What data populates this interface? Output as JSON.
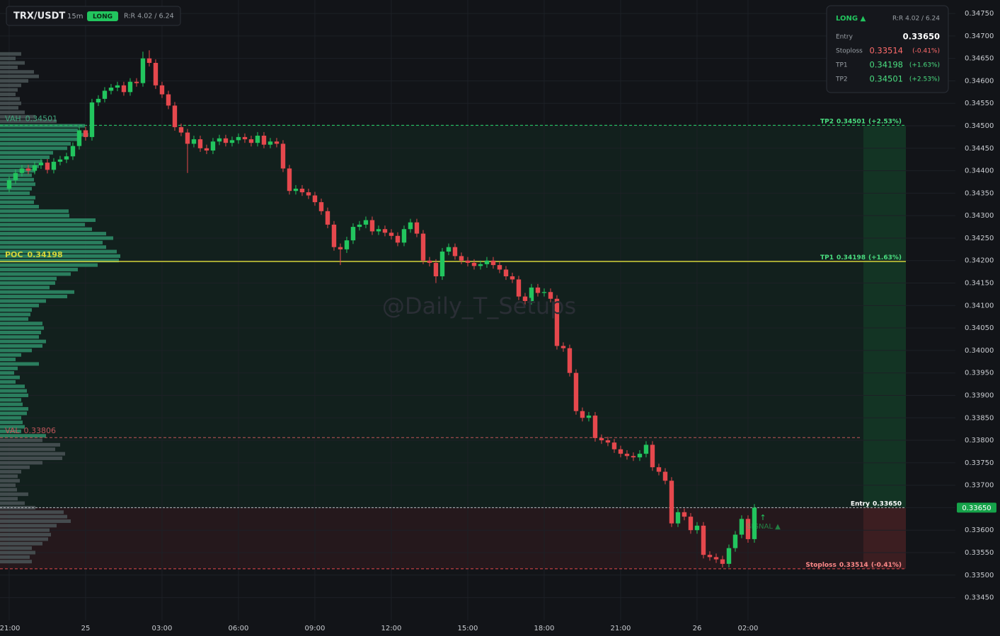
{
  "chart_data": {
    "type": "candlestick",
    "title": "TRX/USDT",
    "interval": "15m",
    "side": "LONG",
    "rr": "R:R 4.02 / 6.24",
    "panel_side": "LONG ▲",
    "watermark": "@Daily_T_Setups",
    "signal": "SIGNAL ▲",
    "colors": {
      "up": "#22c55e",
      "down": "#e5484d",
      "value_area": "#2f8f6a",
      "outside": "#4b5557",
      "poc": "#d4d43a"
    },
    "grid": true,
    "xlim": [
      -1.44,
      148.56
    ],
    "ylim": [
      0.33399,
      0.3478
    ],
    "xticks": [
      {
        "value": 0,
        "label": "21:00"
      },
      {
        "value": 12,
        "label": "25"
      },
      {
        "value": 24,
        "label": "03:00"
      },
      {
        "value": 36,
        "label": "06:00"
      },
      {
        "value": 48,
        "label": "09:00"
      },
      {
        "value": 60,
        "label": "12:00"
      },
      {
        "value": 72,
        "label": "15:00"
      },
      {
        "value": 84,
        "label": "18:00"
      },
      {
        "value": 96,
        "label": "21:00"
      },
      {
        "value": 108,
        "label": "26"
      },
      {
        "value": 116,
        "label": "02:00"
      }
    ],
    "yticks": [
      {
        "value": 0.3475,
        "label": "0.34750"
      },
      {
        "value": 0.347,
        "label": "0.34700"
      },
      {
        "value": 0.3465,
        "label": "0.34650"
      },
      {
        "value": 0.346,
        "label": "0.34600"
      },
      {
        "value": 0.3455,
        "label": "0.34550"
      },
      {
        "value": 0.345,
        "label": "0.34500"
      },
      {
        "value": 0.3445,
        "label": "0.34450"
      },
      {
        "value": 0.344,
        "label": "0.34400"
      },
      {
        "value": 0.3435,
        "label": "0.34350"
      },
      {
        "value": 0.343,
        "label": "0.34300"
      },
      {
        "value": 0.3425,
        "label": "0.34250"
      },
      {
        "value": 0.342,
        "label": "0.34200"
      },
      {
        "value": 0.3415,
        "label": "0.34150"
      },
      {
        "value": 0.341,
        "label": "0.34100"
      },
      {
        "value": 0.3405,
        "label": "0.34050"
      },
      {
        "value": 0.34,
        "label": "0.34000"
      },
      {
        "value": 0.3395,
        "label": "0.33950"
      },
      {
        "value": 0.339,
        "label": "0.33900"
      },
      {
        "value": 0.3385,
        "label": "0.33850"
      },
      {
        "value": 0.338,
        "label": "0.33800"
      },
      {
        "value": 0.3375,
        "label": "0.33750"
      },
      {
        "value": 0.337,
        "label": "0.33700"
      },
      {
        "value": 0.3365,
        "label": "0.33650"
      },
      {
        "value": 0.336,
        "label": "0.33600"
      },
      {
        "value": 0.3355,
        "label": "0.33550"
      },
      {
        "value": 0.335,
        "label": "0.33500"
      },
      {
        "value": 0.3345,
        "label": "0.33450"
      }
    ],
    "last_price": {
      "value": 0.3365,
      "label": "0.33650"
    },
    "open": [
      0.3436,
      0.34379,
      0.34395,
      0.34405,
      0.344,
      0.34412,
      0.34418,
      0.34402,
      0.3442,
      0.34425,
      0.34432,
      0.34455,
      0.3449,
      0.34475,
      0.34552,
      0.3456,
      0.34578,
      0.34585,
      0.3459,
      0.34575,
      0.34598,
      0.34595,
      0.3465,
      0.3464,
      0.3459,
      0.3457,
      0.34545,
      0.34497,
      0.34485,
      0.3446,
      0.3447,
      0.3445,
      0.34445,
      0.34465,
      0.34472,
      0.34462,
      0.34468,
      0.34475,
      0.3447,
      0.34462,
      0.34478,
      0.34458,
      0.34465,
      0.3446,
      0.34405,
      0.34355,
      0.3436,
      0.34352,
      0.34345,
      0.3433,
      0.3431,
      0.3428,
      0.3423,
      0.34225,
      0.34245,
      0.34275,
      0.3428,
      0.3429,
      0.34265,
      0.3427,
      0.34262,
      0.34255,
      0.3424,
      0.3427,
      0.34285,
      0.3426,
      0.342,
      0.34195,
      0.34165,
      0.3422,
      0.3423,
      0.3421,
      0.342,
      0.34195,
      0.34188,
      0.34192,
      0.342,
      0.3419,
      0.3418,
      0.34165,
      0.34158,
      0.3412,
      0.3411,
      0.3414,
      0.34128,
      0.3413,
      0.34115,
      0.3401,
      0.34005,
      0.3395,
      0.33865,
      0.3385,
      0.33855,
      0.33805,
      0.338,
      0.33795,
      0.3378,
      0.3377,
      0.33765,
      0.33762,
      0.3377,
      0.3379,
      0.3374,
      0.3373,
      0.3371,
      0.33615,
      0.3364,
      0.3363,
      0.336,
      0.3361,
      0.33545,
      0.3354,
      0.33535,
      0.33525,
      0.3356,
      0.3359,
      0.33625,
      0.3358
    ],
    "high": [
      0.34387,
      0.34403,
      0.34413,
      0.34413,
      0.3442,
      0.34426,
      0.34426,
      0.34428,
      0.34433,
      0.3444,
      0.34463,
      0.34498,
      0.34498,
      0.3456,
      0.34568,
      0.34586,
      0.34593,
      0.34598,
      0.34598,
      0.34606,
      0.34606,
      0.34665,
      0.34668,
      0.34648,
      0.34598,
      0.34578,
      0.34553,
      0.34505,
      0.34493,
      0.34478,
      0.34478,
      0.34458,
      0.34473,
      0.3448,
      0.3448,
      0.34476,
      0.34483,
      0.34483,
      0.34478,
      0.34486,
      0.34486,
      0.34473,
      0.34473,
      0.34468,
      0.34413,
      0.34368,
      0.34368,
      0.3436,
      0.34353,
      0.34338,
      0.34318,
      0.34288,
      0.34238,
      0.34253,
      0.34283,
      0.34288,
      0.34298,
      0.34298,
      0.34278,
      0.34278,
      0.3427,
      0.34263,
      0.34278,
      0.34293,
      0.34293,
      0.34268,
      0.34208,
      0.34203,
      0.34228,
      0.34238,
      0.34238,
      0.34218,
      0.34208,
      0.34203,
      0.342,
      0.34208,
      0.34208,
      0.34198,
      0.34188,
      0.34173,
      0.34166,
      0.34128,
      0.34148,
      0.34148,
      0.34138,
      0.34138,
      0.34123,
      0.34018,
      0.34013,
      0.33958,
      0.33873,
      0.33863,
      0.33863,
      0.33813,
      0.33808,
      0.33803,
      0.33788,
      0.33778,
      0.33773,
      0.33778,
      0.33798,
      0.33798,
      0.33748,
      0.33738,
      0.33718,
      0.33648,
      0.33648,
      0.33638,
      0.33618,
      0.33618,
      0.33553,
      0.33548,
      0.33543,
      0.33568,
      0.33598,
      0.33633,
      0.33633,
      0.33658
    ],
    "low": [
      0.34352,
      0.34371,
      0.34387,
      0.34392,
      0.34392,
      0.34404,
      0.34394,
      0.34394,
      0.34412,
      0.34417,
      0.34424,
      0.34447,
      0.34467,
      0.34467,
      0.34544,
      0.34552,
      0.3457,
      0.34577,
      0.34567,
      0.34567,
      0.34587,
      0.34587,
      0.34632,
      0.34582,
      0.34562,
      0.34537,
      0.34489,
      0.34477,
      0.34395,
      0.34452,
      0.34442,
      0.34437,
      0.34437,
      0.34457,
      0.34454,
      0.34454,
      0.3446,
      0.34462,
      0.34454,
      0.34454,
      0.3445,
      0.3445,
      0.34452,
      0.34397,
      0.34347,
      0.34347,
      0.34344,
      0.34337,
      0.34322,
      0.34302,
      0.34272,
      0.34222,
      0.3419,
      0.34217,
      0.34237,
      0.34267,
      0.34272,
      0.34257,
      0.34257,
      0.34254,
      0.34247,
      0.34232,
      0.34232,
      0.34262,
      0.34252,
      0.34192,
      0.34187,
      0.3415,
      0.34157,
      0.34212,
      0.34202,
      0.34192,
      0.34187,
      0.3418,
      0.3418,
      0.34184,
      0.34182,
      0.34172,
      0.34157,
      0.3415,
      0.34112,
      0.34102,
      0.34102,
      0.3412,
      0.3412,
      0.34107,
      0.34002,
      0.33997,
      0.33942,
      0.33857,
      0.33842,
      0.33842,
      0.33797,
      0.33792,
      0.33787,
      0.33772,
      0.33762,
      0.33757,
      0.33754,
      0.33754,
      0.33762,
      0.33732,
      0.33722,
      0.33702,
      0.33607,
      0.33607,
      0.33622,
      0.33592,
      0.33592,
      0.33537,
      0.33532,
      0.33527,
      0.33517,
      0.33517,
      0.33552,
      0.33582,
      0.33572,
      0.33572
    ],
    "close": [
      0.34379,
      0.34395,
      0.34405,
      0.344,
      0.34412,
      0.34418,
      0.34402,
      0.3442,
      0.34425,
      0.34432,
      0.34455,
      0.3449,
      0.34475,
      0.34552,
      0.3456,
      0.34578,
      0.34585,
      0.3459,
      0.34575,
      0.34598,
      0.34595,
      0.3465,
      0.3464,
      0.3459,
      0.3457,
      0.34545,
      0.34497,
      0.34485,
      0.3446,
      0.3447,
      0.3445,
      0.34445,
      0.34465,
      0.34472,
      0.34462,
      0.34468,
      0.34475,
      0.3447,
      0.34462,
      0.34478,
      0.34458,
      0.34465,
      0.3446,
      0.34405,
      0.34355,
      0.3436,
      0.34352,
      0.34345,
      0.3433,
      0.3431,
      0.3428,
      0.3423,
      0.34225,
      0.34245,
      0.34275,
      0.3428,
      0.3429,
      0.34265,
      0.3427,
      0.34262,
      0.34255,
      0.3424,
      0.3427,
      0.34285,
      0.3426,
      0.342,
      0.34195,
      0.34165,
      0.3422,
      0.3423,
      0.3421,
      0.342,
      0.34195,
      0.34188,
      0.34192,
      0.342,
      0.3419,
      0.3418,
      0.34165,
      0.34158,
      0.3412,
      0.3411,
      0.3414,
      0.34128,
      0.3413,
      0.34115,
      0.3401,
      0.34005,
      0.3395,
      0.33865,
      0.3385,
      0.33855,
      0.33805,
      0.338,
      0.33795,
      0.3378,
      0.3377,
      0.33765,
      0.33762,
      0.3377,
      0.3379,
      0.3374,
      0.3373,
      0.3371,
      0.33615,
      0.3364,
      0.3363,
      0.336,
      0.3361,
      0.33545,
      0.3354,
      0.33535,
      0.33525,
      0.3356,
      0.3359,
      0.33625,
      0.3358,
      0.3365
    ],
    "levels": [
      {
        "name": "VAH",
        "value": 0.34501
      },
      {
        "name": "POC",
        "value": 0.34198
      },
      {
        "name": "VAL",
        "value": 0.33806
      }
    ],
    "trade": [
      {
        "name": "Entry",
        "price": {
          "value": 0.3365,
          "label": "0.33650"
        }
      },
      {
        "name": "Stoploss",
        "price": 0.33514,
        "change": "(-0.41%)"
      },
      {
        "name": "TP1",
        "price": 0.34198,
        "change": "(+1.63%)"
      },
      {
        "name": "TP2",
        "price": 0.34501,
        "change": "(+2.53%)"
      }
    ],
    "volume_profile": {
      "prices": [
        0.3466,
        0.3465,
        0.3464,
        0.3463,
        0.3462,
        0.3461,
        0.346,
        0.3459,
        0.3458,
        0.3457,
        0.3456,
        0.3455,
        0.3454,
        0.3453,
        0.3452,
        0.3451,
        0.345,
        0.3449,
        0.3448,
        0.3447,
        0.3446,
        0.3445,
        0.3444,
        0.3443,
        0.3442,
        0.3441,
        0.344,
        0.3439,
        0.3438,
        0.3437,
        0.3436,
        0.3435,
        0.3434,
        0.3433,
        0.3432,
        0.3431,
        0.343,
        0.3429,
        0.3428,
        0.3427,
        0.3426,
        0.3425,
        0.3424,
        0.3423,
        0.3422,
        0.3421,
        0.342,
        0.3419,
        0.3418,
        0.3417,
        0.3416,
        0.3415,
        0.3414,
        0.3413,
        0.3412,
        0.3411,
        0.341,
        0.3409,
        0.3408,
        0.3407,
        0.3406,
        0.3405,
        0.3404,
        0.3403,
        0.3402,
        0.3401,
        0.34,
        0.3399,
        0.3398,
        0.3397,
        0.3396,
        0.3395,
        0.3394,
        0.3393,
        0.3392,
        0.3391,
        0.339,
        0.3389,
        0.3388,
        0.3387,
        0.3386,
        0.3385,
        0.3384,
        0.3383,
        0.3382,
        0.3381,
        0.338,
        0.3379,
        0.3378,
        0.3377,
        0.3376,
        0.3375,
        0.3374,
        0.3373,
        0.3372,
        0.3371,
        0.337,
        0.3369,
        0.3368,
        0.3367,
        0.3366,
        0.3365,
        0.3364,
        0.3363,
        0.3362,
        0.3361,
        0.336,
        0.3359,
        0.3358,
        0.3357,
        0.3356,
        0.3355,
        0.3354,
        0.3353
      ],
      "volumes": [
        30,
        22,
        35,
        25,
        48,
        55,
        40,
        30,
        25,
        22,
        28,
        30,
        26,
        35,
        50,
        80,
        120,
        110,
        125,
        115,
        100,
        95,
        75,
        70,
        60,
        55,
        50,
        45,
        48,
        50,
        45,
        42,
        50,
        48,
        55,
        97,
        98,
        135,
        120,
        130,
        150,
        160,
        145,
        150,
        165,
        170,
        168,
        138,
        110,
        100,
        80,
        78,
        70,
        105,
        95,
        65,
        55,
        45,
        43,
        40,
        60,
        62,
        58,
        55,
        65,
        60,
        45,
        30,
        22,
        55,
        25,
        20,
        28,
        22,
        35,
        38,
        40,
        30,
        32,
        40,
        38,
        30,
        32,
        35,
        30,
        65,
        60,
        85,
        78,
        92,
        88,
        60,
        42,
        30,
        25,
        28,
        22,
        24,
        40,
        25,
        35,
        50,
        90,
        95,
        100,
        80,
        70,
        72,
        68,
        60,
        45,
        50,
        42,
        45
      ]
    }
  }
}
